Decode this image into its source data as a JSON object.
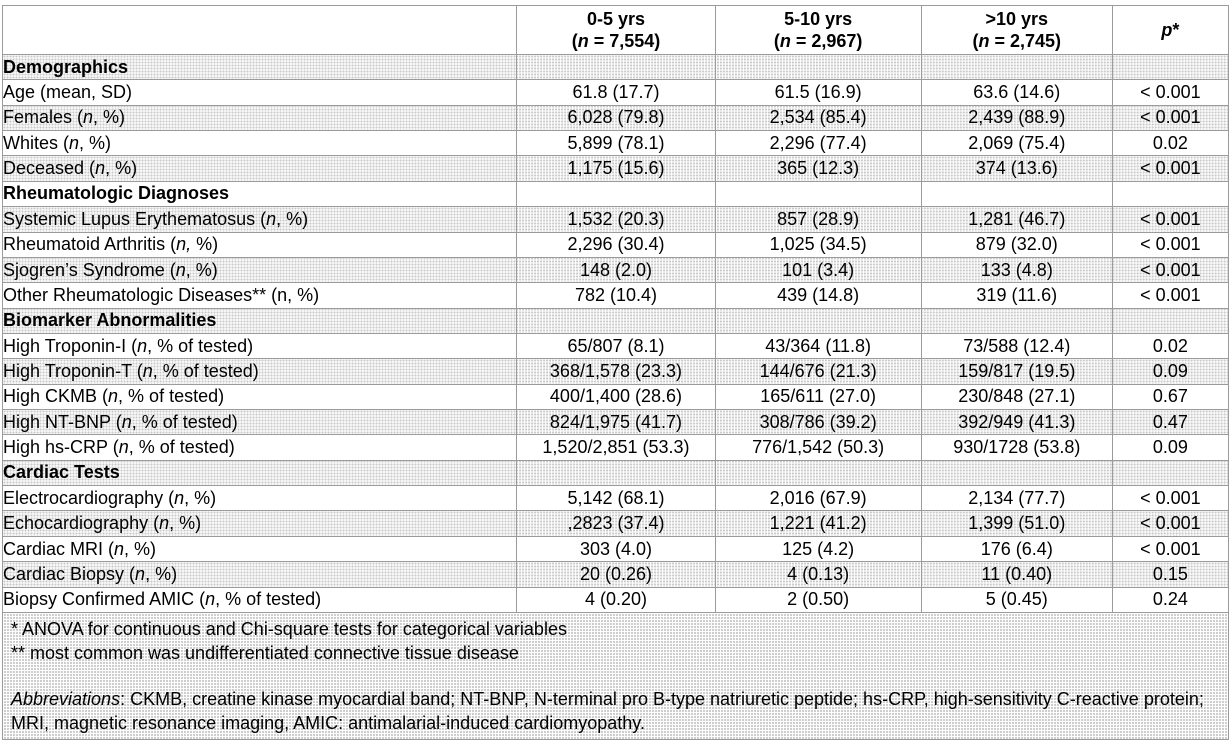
{
  "colors": {
    "grid_border": "#9b9b9b",
    "row_shade": "#e9e9e9",
    "text": "#000000",
    "background": "#ffffff"
  },
  "header": {
    "blank": "",
    "columns": [
      {
        "line1": "0-5 yrs",
        "pre": "(",
        "it": "n",
        "post": " = 7,554)"
      },
      {
        "line1": "5-10 yrs",
        "pre": "(",
        "it": "n",
        "post": " = 2,967)"
      },
      {
        "line1": ">10 yrs",
        "pre": "(",
        "it": "n",
        "post": " = 2,745)"
      }
    ],
    "p_column": {
      "it": "p",
      "post": "*"
    }
  },
  "sections": [
    {
      "title": "Demographics",
      "rows": [
        {
          "pre": "Age (mean, SD)",
          "it": "",
          "post": "",
          "indent": 1,
          "values": [
            "61.8 (17.7)",
            "61.5 (16.9)",
            "63.6 (14.6)",
            "< 0.001"
          ]
        },
        {
          "pre": "Females (",
          "it": "n",
          "post": ", %)",
          "indent": 1,
          "values": [
            "6,028 (79.8)",
            "2,534 (85.4)",
            "2,439 (88.9)",
            "< 0.001"
          ]
        },
        {
          "pre": "Whites (",
          "it": "n",
          "post": ", %)",
          "indent": 1,
          "values": [
            "5,899 (78.1)",
            "2,296 (77.4)",
            "2,069 (75.4)",
            "0.02"
          ]
        },
        {
          "pre": "Deceased (",
          "it": "n",
          "post": ", %)",
          "indent": 1,
          "values": [
            "1,175 (15.6)",
            "365 (12.3)",
            "374 (13.6)",
            "< 0.001"
          ]
        }
      ]
    },
    {
      "title": "Rheumatologic Diagnoses",
      "rows": [
        {
          "pre": "Systemic Lupus Erythematosus (",
          "it": "n",
          "post": ", %)",
          "indent": 1,
          "values": [
            "1,532 (20.3)",
            "857 (28.9)",
            "1,281 (46.7)",
            "< 0.001"
          ]
        },
        {
          "pre": "Rheumatoid Arthritis (",
          "it": "n,",
          "post": " %)",
          "indent": 1,
          "values": [
            "2,296 (30.4)",
            "1,025 (34.5)",
            "879 (32.0)",
            "< 0.001"
          ]
        },
        {
          "pre": "Sjogren’s Syndrome (",
          "it": "n",
          "post": ", %)",
          "indent": 1,
          "values": [
            "148 (2.0)",
            "101 (3.4)",
            "133 (4.8)",
            "< 0.001"
          ]
        },
        {
          "pre": "Other Rheumatologic Diseases** (n, %)",
          "it": "",
          "post": "",
          "indent": 1,
          "values": [
            "782 (10.4)",
            "439 (14.8)",
            "319 (11.6)",
            "< 0.001"
          ]
        }
      ]
    },
    {
      "title": "Biomarker Abnormalities",
      "rows": [
        {
          "pre": "High Troponin-I (",
          "it": "n",
          "post": ", % of tested)",
          "indent": 1,
          "values": [
            "65/807 (8.1)",
            "43/364 (11.8)",
            "73/588 (12.4)",
            "0.02"
          ]
        },
        {
          "pre": "High Troponin-T (",
          "it": "n",
          "post": ", % of tested)",
          "indent": 1,
          "values": [
            "368/1,578 (23.3)",
            "144/676 (21.3)",
            "159/817 (19.5)",
            "0.09"
          ]
        },
        {
          "pre": "High CKMB (",
          "it": "n",
          "post": ", % of tested)",
          "indent": 1,
          "values": [
            "400/1,400 (28.6)",
            "165/611 (27.0)",
            "230/848 (27.1)",
            "0.67"
          ]
        },
        {
          "pre": "High NT-BNP (",
          "it": "n",
          "post": ", % of tested)",
          "indent": 1,
          "values": [
            "824/1,975 (41.7)",
            "308/786 (39.2)",
            "392/949 (41.3)",
            "0.47"
          ]
        },
        {
          "pre": "High hs-CRP (",
          "it": "n",
          "post": ", % of tested)",
          "indent": 1,
          "values": [
            "1,520/2,851 (53.3)",
            "776/1,542 (50.3)",
            "930/1728 (53.8)",
            "0.09"
          ]
        }
      ]
    },
    {
      "title": "Cardiac Tests",
      "rows": [
        {
          "pre": "Electrocardiography (",
          "it": "n",
          "post": ", %)",
          "indent": 1,
          "values": [
            "5,142 (68.1)",
            "2,016 (67.9)",
            "2,134 (77.7)",
            "< 0.001"
          ]
        },
        {
          "pre": "Echocardiography (",
          "it": "n",
          "post": ", %)",
          "indent": 1,
          "values": [
            ",2823 (37.4)",
            "1,221 (41.2)",
            "1,399 (51.0)",
            "< 0.001"
          ]
        },
        {
          "pre": "Cardiac MRI (",
          "it": "n",
          "post": ", %)",
          "indent": 1,
          "values": [
            "303 (4.0)",
            "125 (4.2)",
            "176 (6.4)",
            "< 0.001"
          ]
        },
        {
          "pre": "Cardiac Biopsy (",
          "it": "n",
          "post": ", %)",
          "indent": 1,
          "values": [
            "20 (0.26)",
            "4 (0.13)",
            "11 (0.40)",
            "0.15"
          ]
        },
        {
          "pre": "Biopsy Confirmed AMIC (",
          "it": "n",
          "post": ", % of tested)",
          "indent": 2,
          "values": [
            "4 (0.20)",
            "2 (0.50)",
            "5 (0.45)",
            "0.24"
          ]
        }
      ]
    }
  ],
  "footnotes": {
    "line1": "* ANOVA for continuous and Chi-square tests for categorical variables",
    "line2": "** most common was undifferentiated connective tissue disease",
    "abbrev_it": "Abbreviations",
    "abbrev_post": ": CKMB, creatine kinase myocardial band; NT-BNP, N-terminal pro B-type natriuretic peptide; hs-CRP, high-sensitivity C-reactive protein; MRI, magnetic resonance imaging, AMIC: antimalarial-induced cardiomyopathy."
  }
}
